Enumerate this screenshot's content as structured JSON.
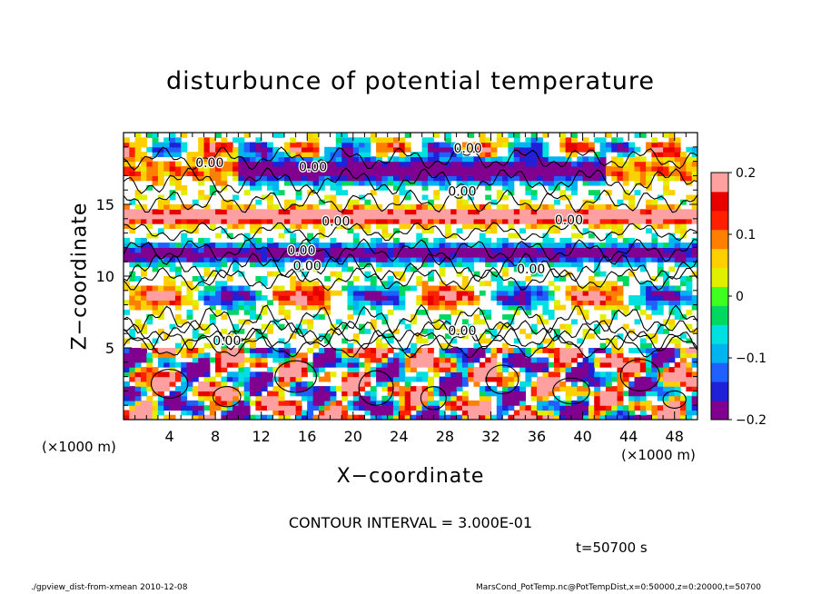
{
  "title": "disturbunce of potential temperature",
  "chart_data": {
    "type": "heatmap",
    "title": "disturbunce of potential temperature",
    "xlabel": "X−coordinate",
    "ylabel": "Z−coordinate",
    "x_unit": "(×1000 m)",
    "y_unit": "(×1000 m)",
    "x_ticks": [
      4,
      8,
      12,
      16,
      20,
      24,
      28,
      32,
      36,
      40,
      44,
      48
    ],
    "y_ticks": [
      5,
      10,
      15
    ],
    "xlim": [
      0,
      50
    ],
    "ylim": [
      0,
      20
    ],
    "colorbar": {
      "range": [
        -0.2,
        0.2
      ],
      "tick_values": [
        0.2,
        0.1,
        0,
        -0.1,
        -0.2
      ],
      "tick_labels": [
        "0.2",
        "0.1",
        "0",
        "−0.1",
        "−0.2"
      ],
      "colors": [
        "#800090",
        "#2020d8",
        "#2060ff",
        "#00b4f0",
        "#00e0e0",
        "#00d860",
        "#40ff20",
        "#e0f000",
        "#ffd000",
        "#ff8000",
        "#ff2000",
        "#e80000",
        "#ffa0a0"
      ]
    },
    "contour_labels": [
      {
        "text": "0.00",
        "x": 7.5,
        "z": 17.6
      },
      {
        "text": "0.00",
        "x": 16.5,
        "z": 17.3
      },
      {
        "text": "0.00",
        "x": 30,
        "z": 18.6
      },
      {
        "text": "0.00",
        "x": 29.5,
        "z": 15.6
      },
      {
        "text": "0.00",
        "x": 18.5,
        "z": 13.5
      },
      {
        "text": "0.00",
        "x": 15.5,
        "z": 11.5
      },
      {
        "text": "0.00",
        "x": 16,
        "z": 10.4
      },
      {
        "text": "0.00",
        "x": 29.5,
        "z": 5.9
      },
      {
        "text": "0.00",
        "x": 38.8,
        "z": 13.6
      },
      {
        "text": "0.00",
        "x": 35.5,
        "z": 10.2
      },
      {
        "text": "0.00",
        "x": 9,
        "z": 5.2
      }
    ],
    "contour_interval": "CONTOUR INTERVAL = 3.000E-01"
  },
  "time_label": "t=50700 s",
  "footer_left": "./gpview_dist-from-xmean   2010-12-08",
  "footer_right": "MarsCond_PotTemp.nc@PotTempDist,x=0:50000,z=0:20000,t=50700"
}
